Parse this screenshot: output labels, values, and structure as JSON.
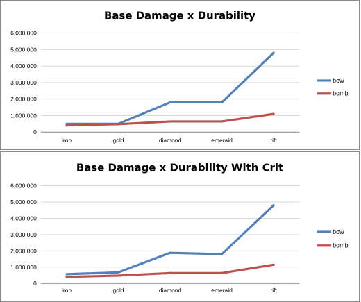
{
  "chart_data": [
    {
      "type": "line",
      "title": "Base Damage x Durability",
      "categories": [
        "iron",
        "gold",
        "diamond",
        "emerald",
        "rift"
      ],
      "ylim": [
        0,
        6000000
      ],
      "yticks": [
        "0",
        "1,000,000",
        "2,000,000",
        "3,000,000",
        "4,000,000",
        "5,000,000",
        "6,000,000"
      ],
      "grid": true,
      "legend": "right",
      "series": [
        {
          "name": "bow",
          "color": "#4f81bd",
          "values": [
            500000,
            500000,
            1800000,
            1800000,
            4800000
          ]
        },
        {
          "name": "bomb",
          "color": "#c0504d",
          "values": [
            400000,
            480000,
            640000,
            640000,
            1100000
          ]
        }
      ]
    },
    {
      "type": "line",
      "title": "Base Damage x Durability With Crit",
      "categories": [
        "iron",
        "gold",
        "diamond",
        "emerald",
        "rift"
      ],
      "ylim": [
        0,
        6000000
      ],
      "yticks": [
        "0",
        "1,000,000",
        "2,000,000",
        "3,000,000",
        "4,000,000",
        "5,000,000",
        "6,000,000"
      ],
      "grid": true,
      "legend": "right",
      "series": [
        {
          "name": "bow",
          "color": "#4f81bd",
          "values": [
            570000,
            680000,
            1880000,
            1800000,
            4800000
          ]
        },
        {
          "name": "bomb",
          "color": "#c0504d",
          "values": [
            400000,
            480000,
            640000,
            640000,
            1150000
          ]
        }
      ]
    }
  ]
}
